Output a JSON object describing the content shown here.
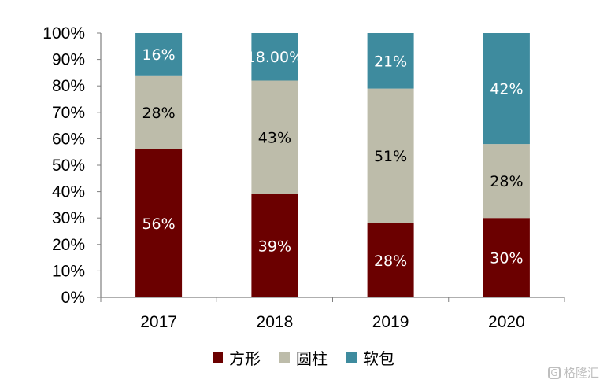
{
  "chart_data": {
    "type": "bar",
    "stacked": true,
    "categories": [
      "2017",
      "2018",
      "2019",
      "2020"
    ],
    "series": [
      {
        "name": "方形",
        "color": "#6b0000",
        "label_color": "#ffffff",
        "values": [
          56,
          39,
          28,
          30
        ],
        "labels": [
          "56%",
          "39%",
          "28%",
          "30%"
        ]
      },
      {
        "name": "圆柱",
        "color": "#bdbcaa",
        "label_color": "#000000",
        "values": [
          28,
          43,
          51,
          28
        ],
        "labels": [
          "28%",
          "43%",
          "51%",
          "28%"
        ]
      },
      {
        "name": "软包",
        "color": "#3e8b9e",
        "label_color": "#ffffff",
        "values": [
          16,
          18,
          21,
          42
        ],
        "labels": [
          "16%",
          "18.00%",
          "21%",
          "42%"
        ]
      }
    ],
    "ylim": [
      0,
      100
    ],
    "yticks": [
      "0%",
      "10%",
      "20%",
      "30%",
      "40%",
      "50%",
      "60%",
      "70%",
      "80%",
      "90%",
      "100%"
    ],
    "grid": false,
    "legend_position": "bottom"
  },
  "watermark": {
    "icon": "G",
    "text": "格隆汇"
  }
}
